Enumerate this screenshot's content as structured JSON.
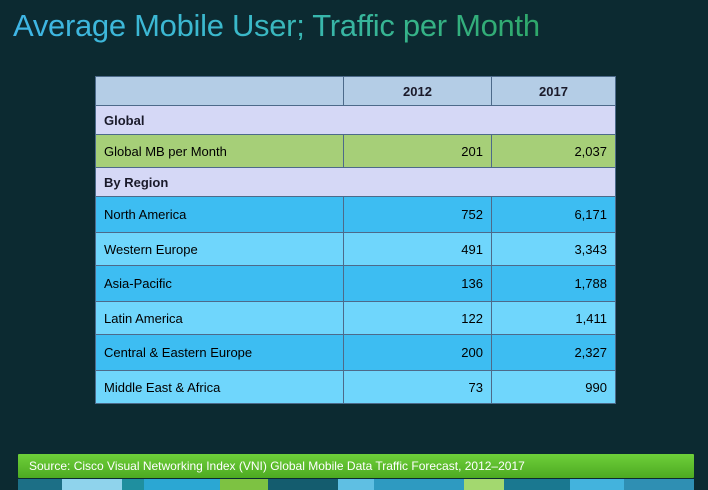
{
  "title": "Average Mobile User; Traffic per Month",
  "table": {
    "col_years": [
      "2012",
      "2017"
    ],
    "section_global": "Global",
    "global_row": {
      "label": "Global MB per Month",
      "v2012": "201",
      "v2017": "2,037"
    },
    "section_region": "By Region",
    "regions": [
      {
        "label": "North America",
        "v2012": "752",
        "v2017": "6,171"
      },
      {
        "label": "Western Europe",
        "v2012": "491",
        "v2017": "3,343"
      },
      {
        "label": "Asia-Pacific",
        "v2012": "136",
        "v2017": "1,788"
      },
      {
        "label": "Latin America",
        "v2012": "122",
        "v2017": "1,411"
      },
      {
        "label": "Central & Eastern Europe",
        "v2012": "200",
        "v2017": "2,327"
      },
      {
        "label": "Middle East & Africa",
        "v2012": "73",
        "v2017": "990"
      }
    ]
  },
  "source": "Source: Cisco Visual Networking Index (VNI) Global Mobile Data Traffic Forecast, 2012–2017",
  "colors": {
    "background": "#0c2a31",
    "header": "#b4cde6",
    "section": "#d5d8f6",
    "global_row": "#a6cf78",
    "row_dark": "#3dbdf2",
    "row_light": "#6fd6fc",
    "footer": "#5cbc2e"
  },
  "chart_data": {
    "type": "table",
    "title": "Average Mobile User; Traffic per Month",
    "columns": [
      "",
      "2012",
      "2017"
    ],
    "rows": [
      {
        "group": "Global",
        "label": "Global MB per Month",
        "values": [
          201,
          2037
        ]
      },
      {
        "group": "By Region",
        "label": "North America",
        "values": [
          752,
          6171
        ]
      },
      {
        "group": "By Region",
        "label": "Western Europe",
        "values": [
          491,
          3343
        ]
      },
      {
        "group": "By Region",
        "label": "Asia-Pacific",
        "values": [
          136,
          1788
        ]
      },
      {
        "group": "By Region",
        "label": "Latin America",
        "values": [
          122,
          1411
        ]
      },
      {
        "group": "By Region",
        "label": "Central & Eastern Europe",
        "values": [
          200,
          2327
        ]
      },
      {
        "group": "By Region",
        "label": "Middle East & Africa",
        "values": [
          73,
          990
        ]
      }
    ]
  }
}
